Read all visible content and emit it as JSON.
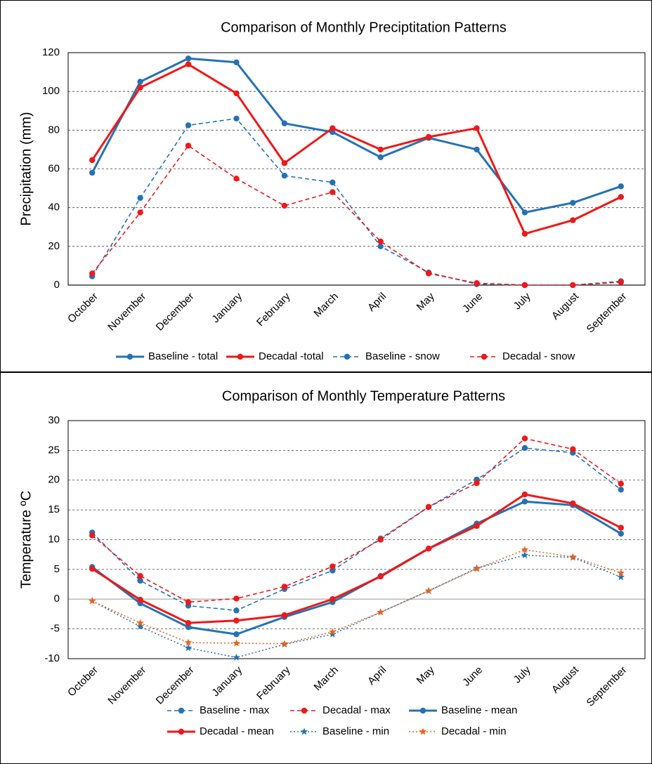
{
  "chart_data": [
    {
      "type": "line",
      "title": "Comparison of Monthly Preciptitation Patterns",
      "y_label": "Precipitation (mm)",
      "categories": [
        "October",
        "November",
        "December",
        "January",
        "February",
        "March",
        "April",
        "May",
        "June",
        "July",
        "August",
        "September"
      ],
      "ylim": [
        0,
        120
      ],
      "yticks": [
        0,
        20,
        40,
        60,
        80,
        100,
        120
      ],
      "grid": true,
      "legend": "bottom",
      "series": [
        {
          "name": "Baseline - total",
          "color": "#2472b5",
          "line_style": "solid",
          "marker": "circle",
          "values": [
            58,
            105,
            117,
            115,
            83.5,
            79,
            66,
            76,
            70,
            37.5,
            42.5,
            51
          ]
        },
        {
          "name": "Decadal -total",
          "color": "#f01818",
          "line_style": "solid",
          "marker": "circle",
          "values": [
            64.5,
            102,
            114,
            99,
            63,
            81,
            70,
            76.5,
            81,
            26.5,
            33.5,
            45.5
          ]
        },
        {
          "name": "Baseline - snow",
          "color": "#2472b5",
          "line_style": "dashed",
          "marker": "circle",
          "values": [
            4.5,
            45,
            82.5,
            86,
            56.5,
            53,
            20,
            6.5,
            0.5,
            0,
            0,
            2
          ]
        },
        {
          "name": "Decadal - snow",
          "color": "#f01818",
          "line_style": "dashed",
          "marker": "circle",
          "values": [
            6,
            37.5,
            72,
            55,
            41,
            48,
            22.5,
            6,
            1,
            0,
            0,
            1.5
          ]
        }
      ]
    },
    {
      "type": "line",
      "title": "Comparison of Monthly Temperature Patterns",
      "y_label": "Temperature ºC",
      "categories": [
        "October",
        "November",
        "December",
        "January",
        "February",
        "March",
        "April",
        "May",
        "June",
        "July",
        "August",
        "September"
      ],
      "ylim": [
        -10,
        30
      ],
      "yticks": [
        -10,
        -5,
        0,
        5,
        10,
        15,
        20,
        25,
        30
      ],
      "grid": true,
      "legend": "bottom",
      "series": [
        {
          "name": "Baseline - max",
          "color": "#2472b5",
          "line_style": "dashed",
          "marker": "circle",
          "values": [
            11.2,
            3.1,
            -1.1,
            -1.9,
            1.7,
            4.8,
            10.2,
            15.5,
            20.1,
            25.4,
            24.6,
            18.4
          ]
        },
        {
          "name": "Decadal - max",
          "color": "#f01818",
          "line_style": "dashed",
          "marker": "circle",
          "values": [
            10.7,
            3.9,
            -0.5,
            0.1,
            2.1,
            5.5,
            10.0,
            15.5,
            19.5,
            27.0,
            25.2,
            19.4
          ]
        },
        {
          "name": "Baseline - mean",
          "color": "#2472b5",
          "line_style": "solid",
          "marker": "circle",
          "values": [
            5.4,
            -0.7,
            -4.7,
            -5.9,
            -3.0,
            -0.5,
            3.9,
            8.5,
            12.7,
            16.4,
            15.8,
            11.0
          ]
        },
        {
          "name": "Decadal - mean",
          "color": "#f01818",
          "line_style": "solid",
          "marker": "circle",
          "values": [
            5.1,
            -0.1,
            -4.0,
            -3.6,
            -2.7,
            0.0,
            3.8,
            8.5,
            12.3,
            17.6,
            16.1,
            12.0
          ]
        },
        {
          "name": "Baseline - min",
          "color": "#2472b5",
          "line_style": "dotted",
          "marker": "star",
          "values": [
            -0.3,
            -4.6,
            -8.2,
            -9.8,
            -7.6,
            -5.9,
            -2.2,
            1.4,
            5.2,
            7.4,
            7.0,
            3.7
          ]
        },
        {
          "name": "Decadal - min",
          "color": "#f06018",
          "line_style": "dotted",
          "marker": "star",
          "values": [
            -0.3,
            -4.0,
            -7.3,
            -7.4,
            -7.5,
            -5.5,
            -2.2,
            1.4,
            5.1,
            8.3,
            7.1,
            4.4
          ]
        }
      ]
    }
  ]
}
